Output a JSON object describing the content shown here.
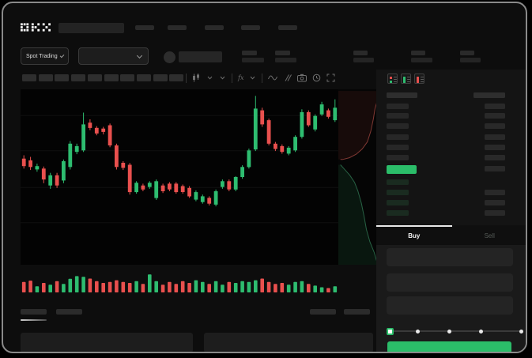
{
  "header": {
    "logo": "OKX",
    "nav_placeholders": 5
  },
  "subheader": {
    "market_type": "Spot Trading",
    "stat_placeholders": 5
  },
  "toolbar": {
    "placeholder_tools": 10,
    "icons": [
      "separator",
      "interval-candles-icon",
      "chevron-down-icon",
      "chevron-down-icon",
      "separator",
      "indicators-icon",
      "chevron-down-icon",
      "separator",
      "line-type-icon",
      "compare-icon",
      "camera-icon",
      "reload-time-icon",
      "fullscreen-icon"
    ]
  },
  "orderbook": {
    "layout_icons": [
      "orderbook-both-icon",
      "orderbook-bids-icon",
      "orderbook-asks-icon"
    ],
    "ask_rows": 6,
    "bid_rows": 4
  },
  "trade": {
    "tabs": [
      {
        "label": "Buy",
        "active": true
      },
      {
        "label": "Sell",
        "active": false
      }
    ],
    "amount_slider": {
      "stops": 5,
      "selected_index": 0
    }
  },
  "colors": {
    "up_green": "#2ebd70",
    "down_red": "#e9504e",
    "accent_green": "#2bbd69",
    "depth_ask_line": "rgba(222,96,88,0.55)",
    "depth_ask_fill": "rgba(190,70,60,0.10)",
    "depth_bid_line": "rgba(80,200,140,0.45)",
    "depth_bid_fill": "rgba(46,189,112,0.10)"
  },
  "chart_data": [
    {
      "type": "candlestick",
      "note": "skeleton mock chart, no visible axis labels",
      "ylim": [
        0,
        100
      ],
      "grid_levels": [
        24,
        44,
        65,
        85
      ],
      "candles_ohlc": [
        [
          60.5,
          62.4,
          54.8,
          56.2
        ],
        [
          59.5,
          61.5,
          54.0,
          55.7
        ],
        [
          54.3,
          57.6,
          53.0,
          56.2
        ],
        [
          54.8,
          56.0,
          46.5,
          48.6
        ],
        [
          45.2,
          52.4,
          43.3,
          51.0
        ],
        [
          51.0,
          52.4,
          43.8,
          45.2
        ],
        [
          48.0,
          60.0,
          46.5,
          59.0
        ],
        [
          55.7,
          70.5,
          54.3,
          69.0
        ],
        [
          64.3,
          69.0,
          63.0,
          67.6
        ],
        [
          65.2,
          86.7,
          64.3,
          80.0
        ],
        [
          81.0,
          82.9,
          76.7,
          78.0
        ],
        [
          78.0,
          79.0,
          73.8,
          74.8
        ],
        [
          77.6,
          78.6,
          74.3,
          75.7
        ],
        [
          79.5,
          80.5,
          67.0,
          68.0
        ],
        [
          68.0,
          69.0,
          54.3,
          55.7
        ],
        [
          58.1,
          59.0,
          54.0,
          55.2
        ],
        [
          57.0,
          58.0,
          40.0,
          41.4
        ],
        [
          41.4,
          47.6,
          40.5,
          46.7
        ],
        [
          45.2,
          46.2,
          41.9,
          42.9
        ],
        [
          44.3,
          47.6,
          43.3,
          46.7
        ],
        [
          38.0,
          48.6,
          37.0,
          47.6
        ],
        [
          45.2,
          46.2,
          40.9,
          41.9
        ],
        [
          46.2,
          47.1,
          41.9,
          42.9
        ],
        [
          46.2,
          47.1,
          40.5,
          41.4
        ],
        [
          44.8,
          45.7,
          40.5,
          41.4
        ],
        [
          43.8,
          44.8,
          38.1,
          39.0
        ],
        [
          37.1,
          42.4,
          36.2,
          41.4
        ],
        [
          35.7,
          40.0,
          34.8,
          39.0
        ],
        [
          38.1,
          39.0,
          33.8,
          34.8
        ],
        [
          34.3,
          42.9,
          33.3,
          41.9
        ],
        [
          44.3,
          48.6,
          43.3,
          47.6
        ],
        [
          47.6,
          48.6,
          41.9,
          42.9
        ],
        [
          42.9,
          50.5,
          41.9,
          50.0
        ],
        [
          50.0,
          56.7,
          49.0,
          55.7
        ],
        [
          55.7,
          66.2,
          54.8,
          65.2
        ],
        [
          65.7,
          96.2,
          64.8,
          89.0
        ],
        [
          88.0,
          89.5,
          78.6,
          80.0
        ],
        [
          82.4,
          83.3,
          68.0,
          69.0
        ],
        [
          69.0,
          70.0,
          64.8,
          66.0
        ],
        [
          67.6,
          68.6,
          63.3,
          64.3
        ],
        [
          63.3,
          67.6,
          62.4,
          66.7
        ],
        [
          65.2,
          73.8,
          64.3,
          72.9
        ],
        [
          72.9,
          88.6,
          71.9,
          87.0
        ],
        [
          87.0,
          88.0,
          78.6,
          79.5
        ],
        [
          77.1,
          85.7,
          76.0,
          84.8
        ],
        [
          85.7,
          92.9,
          84.8,
          91.4
        ],
        [
          88.0,
          89.0,
          83.3,
          84.3
        ],
        [
          82.4,
          94.3,
          81.4,
          89.5
        ]
      ]
    },
    {
      "type": "bar",
      "name": "volume",
      "values": [
        55,
        62,
        32,
        50,
        41,
        59,
        45,
        72,
        86,
        82,
        73,
        59,
        50,
        55,
        64,
        55,
        50,
        59,
        45,
        95,
        59,
        41,
        55,
        45,
        59,
        50,
        64,
        55,
        45,
        59,
        41,
        55,
        50,
        59,
        55,
        64,
        73,
        55,
        45,
        50,
        41,
        55,
        59,
        45,
        36,
        27,
        23,
        32
      ]
    },
    {
      "type": "area",
      "name": "market-depth",
      "asks_line": [
        [
          100,
          1
        ],
        [
          92,
          6
        ],
        [
          86,
          11
        ],
        [
          82,
          17
        ],
        [
          76,
          24
        ],
        [
          68,
          30
        ],
        [
          56,
          34
        ],
        [
          42,
          37
        ],
        [
          26,
          39
        ],
        [
          10,
          40
        ],
        [
          5,
          40
        ]
      ],
      "bids_line": [
        [
          5,
          43
        ],
        [
          16,
          46
        ],
        [
          27,
          49
        ],
        [
          38,
          53
        ],
        [
          46,
          58
        ],
        [
          54,
          65
        ],
        [
          60,
          72
        ],
        [
          66,
          80
        ],
        [
          74,
          87
        ],
        [
          84,
          93
        ],
        [
          90,
          98
        ],
        [
          92,
          100
        ]
      ]
    }
  ]
}
